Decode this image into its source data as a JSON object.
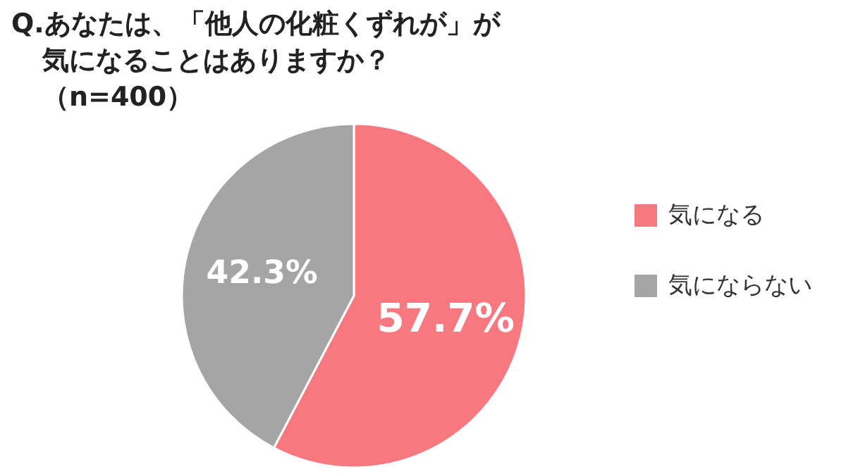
{
  "chart_data": {
    "type": "pie",
    "title": "Q.あなたは、「他人の化粧くずれが」が気になることはありますか？（n=400）",
    "categories": [
      "気になる",
      "気にならない"
    ],
    "values": [
      57.7,
      42.3
    ],
    "colors": [
      "#f7797f",
      "#a5a5a5"
    ],
    "value_labels": [
      "57.7%",
      "42.3%"
    ],
    "legend": "right"
  }
}
